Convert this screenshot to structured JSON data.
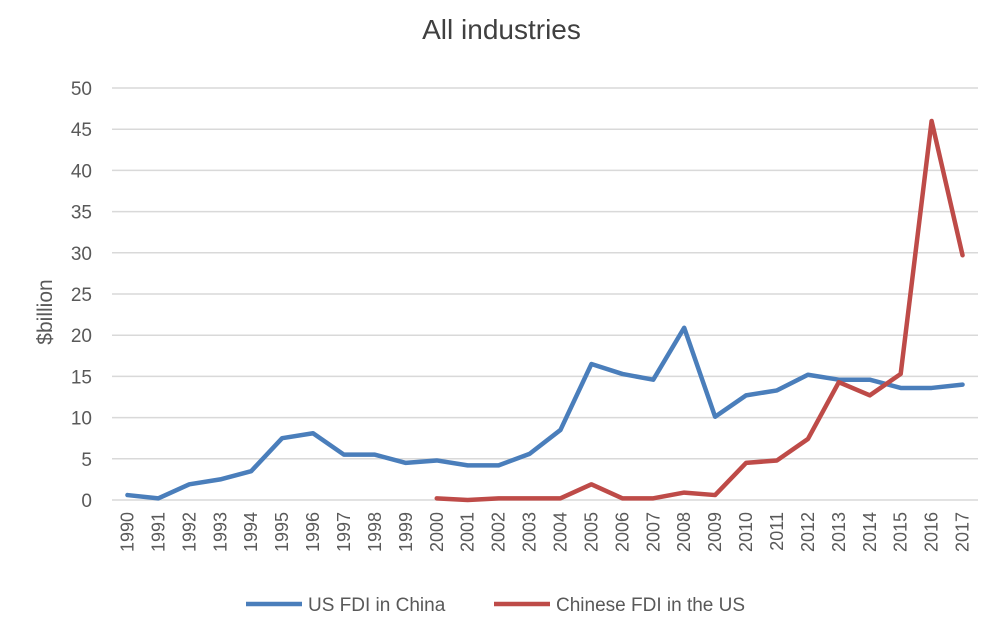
{
  "chart_data": {
    "type": "line",
    "title": "All industries",
    "xlabel": "",
    "ylabel": "$billion",
    "ylim": [
      0,
      50
    ],
    "yticks": [
      0,
      5,
      10,
      15,
      20,
      25,
      30,
      35,
      40,
      45,
      50
    ],
    "grid": true,
    "legend_position": "bottom",
    "x": [
      "1990",
      "1991",
      "1992",
      "1993",
      "1994",
      "1995",
      "1996",
      "1997",
      "1998",
      "1999",
      "2000",
      "2001",
      "2002",
      "2003",
      "2004",
      "2005",
      "2006",
      "2007",
      "2008",
      "2009",
      "2010",
      "2011",
      "2012",
      "2013",
      "2014",
      "2015",
      "2016",
      "2017"
    ],
    "series": [
      {
        "name": "US FDI in China",
        "color": "#4a7ebb",
        "values": [
          0.6,
          0.2,
          1.9,
          2.5,
          3.5,
          7.5,
          8.1,
          5.5,
          5.5,
          4.5,
          4.8,
          4.2,
          4.2,
          5.6,
          8.5,
          16.5,
          15.3,
          14.6,
          20.9,
          10.1,
          12.7,
          13.3,
          15.2,
          14.6,
          14.6,
          13.6,
          13.6,
          14.0
        ]
      },
      {
        "name": "Chinese FDI in the US",
        "color": "#be4b48",
        "values": [
          null,
          null,
          null,
          null,
          null,
          null,
          null,
          null,
          null,
          null,
          0.2,
          0.0,
          0.2,
          0.2,
          0.2,
          1.9,
          0.2,
          0.2,
          0.9,
          0.6,
          4.5,
          4.8,
          7.4,
          14.3,
          12.7,
          15.3,
          46.0,
          29.7
        ]
      }
    ]
  }
}
